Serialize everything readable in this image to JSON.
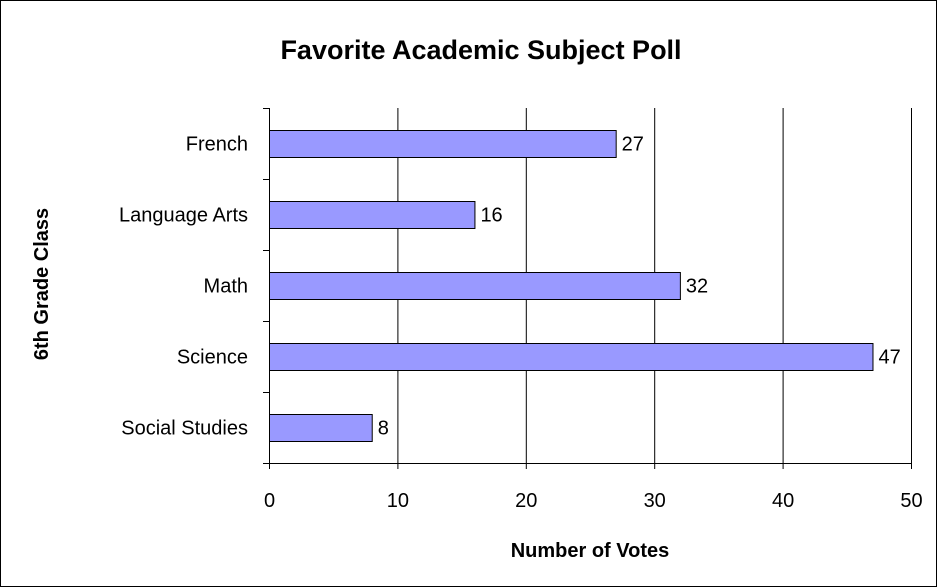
{
  "chart_data": {
    "type": "bar",
    "orientation": "horizontal",
    "title": "Favorite Academic Subject Poll",
    "xlabel": "Number of Votes",
    "ylabel": "6th Grade Class",
    "categories": [
      "French",
      "Language Arts",
      "Math",
      "Science",
      "Social Studies"
    ],
    "values": [
      27,
      16,
      32,
      47,
      8
    ],
    "data_labels": [
      "27",
      "16",
      "32",
      "47",
      "8"
    ],
    "xlim": [
      0,
      50
    ],
    "x_ticks": [
      0,
      10,
      20,
      30,
      40,
      50
    ],
    "x_tick_labels": [
      "0",
      "10",
      "20",
      "30",
      "40",
      "50"
    ],
    "grid": "vertical",
    "legend": "none",
    "bar_color": "#9999ff",
    "bar_edge_color": "#000000"
  }
}
